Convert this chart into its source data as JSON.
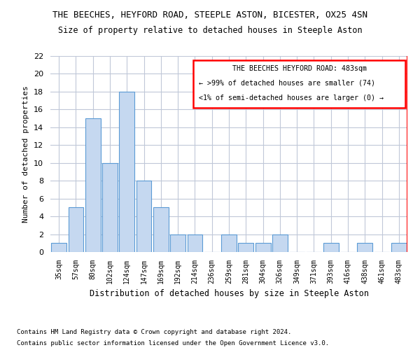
{
  "title": "THE BEECHES, HEYFORD ROAD, STEEPLE ASTON, BICESTER, OX25 4SN",
  "subtitle": "Size of property relative to detached houses in Steeple Aston",
  "xlabel": "Distribution of detached houses by size in Steeple Aston",
  "ylabel": "Number of detached properties",
  "categories": [
    "35sqm",
    "57sqm",
    "80sqm",
    "102sqm",
    "124sqm",
    "147sqm",
    "169sqm",
    "192sqm",
    "214sqm",
    "236sqm",
    "259sqm",
    "281sqm",
    "304sqm",
    "326sqm",
    "349sqm",
    "371sqm",
    "393sqm",
    "416sqm",
    "438sqm",
    "461sqm",
    "483sqm"
  ],
  "values": [
    1,
    5,
    15,
    10,
    18,
    8,
    5,
    2,
    2,
    0,
    2,
    1,
    1,
    2,
    0,
    0,
    1,
    0,
    1,
    0,
    1
  ],
  "bar_color": "#c5d8f0",
  "bar_edge_color": "#5b9bd5",
  "ylim": [
    0,
    22
  ],
  "yticks": [
    0,
    2,
    4,
    6,
    8,
    10,
    12,
    14,
    16,
    18,
    20,
    22
  ],
  "annotation_box_color": "#ff0000",
  "annotation_title": "THE BEECHES HEYFORD ROAD: 483sqm",
  "annotation_line1": "← >99% of detached houses are smaller (74)",
  "annotation_line2": "<1% of semi-detached houses are larger (0) →",
  "footer1": "Contains HM Land Registry data © Crown copyright and database right 2024.",
  "footer2": "Contains public sector information licensed under the Open Government Licence v3.0.",
  "background_color": "#ffffff",
  "grid_color": "#c0c8d8"
}
